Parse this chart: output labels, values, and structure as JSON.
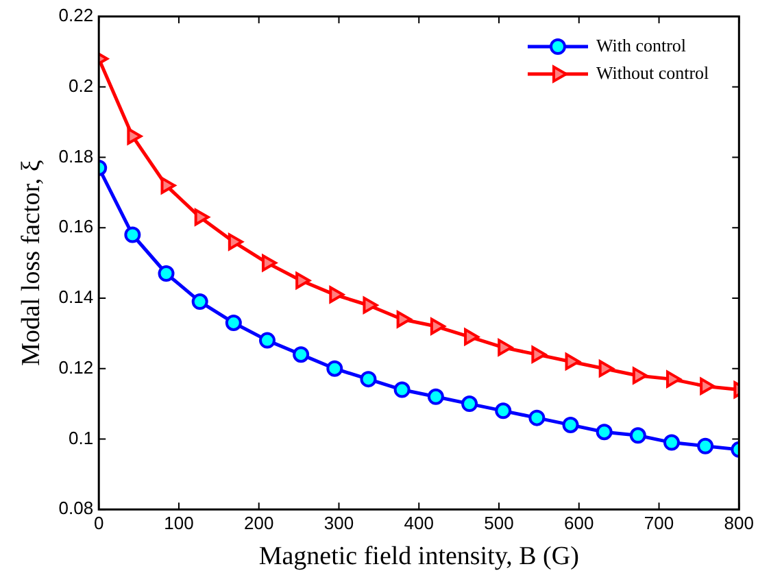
{
  "chart_data": {
    "type": "line",
    "xlabel": "Magnetic field intensity, B (G)",
    "ylabel": "Modal loss factor, ξ",
    "x": [
      0,
      42.1,
      84.2,
      126.3,
      168.4,
      210.5,
      252.6,
      294.7,
      336.8,
      378.9,
      421.1,
      463.2,
      505.3,
      547.4,
      589.5,
      631.6,
      673.7,
      715.8,
      757.9,
      800
    ],
    "series": [
      {
        "name": "With control",
        "color": "#0000ff",
        "marker": "circle",
        "values": [
          0.177,
          0.158,
          0.147,
          0.139,
          0.133,
          0.128,
          0.124,
          0.12,
          0.117,
          0.114,
          0.112,
          0.11,
          0.108,
          0.106,
          0.104,
          0.102,
          0.101,
          0.099,
          0.098,
          0.097
        ]
      },
      {
        "name": "Without control",
        "color": "#ff0000",
        "marker": "triangle",
        "values": [
          0.208,
          0.186,
          0.172,
          0.163,
          0.156,
          0.15,
          0.145,
          0.141,
          0.138,
          0.134,
          0.132,
          0.129,
          0.126,
          0.124,
          0.122,
          0.12,
          0.118,
          0.117,
          0.115,
          0.114
        ]
      }
    ],
    "xlim": [
      0,
      800
    ],
    "xticks": [
      0,
      100,
      200,
      300,
      400,
      500,
      600,
      700,
      800
    ],
    "ylim": [
      0.08,
      0.22
    ],
    "yticks": [
      0.08,
      0.1,
      0.12,
      0.14,
      0.16,
      0.18,
      0.2,
      0.22
    ],
    "grid": false,
    "legend": "top right",
    "line_style": "solid"
  }
}
